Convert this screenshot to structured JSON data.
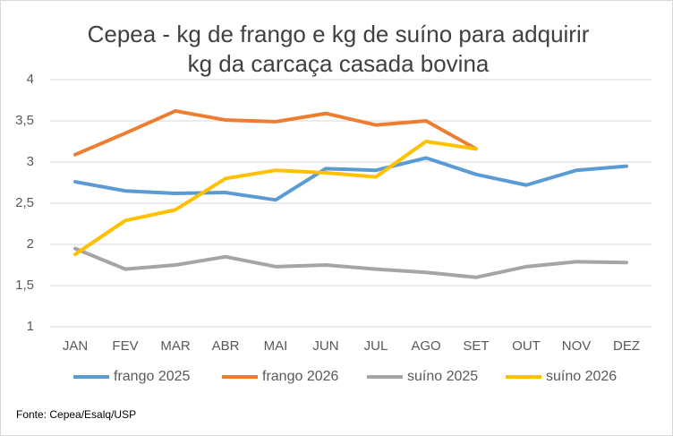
{
  "chart_data": {
    "type": "line",
    "title": [
      "Cepea - kg de frango e kg de suíno para adquirir",
      "kg da carcaça casada bovina"
    ],
    "categories": [
      "JAN",
      "FEV",
      "MAR",
      "ABR",
      "MAI",
      "JUN",
      "JUL",
      "AGO",
      "SET",
      "OUT",
      "NOV",
      "DEZ"
    ],
    "series": [
      {
        "name": "frango 2025",
        "color": "#5b9bd5",
        "values": [
          2.76,
          2.65,
          2.62,
          2.63,
          2.54,
          2.92,
          2.9,
          3.05,
          2.85,
          2.72,
          2.9,
          2.95
        ]
      },
      {
        "name": "frango 2026",
        "color": "#ed7d31",
        "values": [
          3.09,
          3.35,
          3.62,
          3.51,
          3.49,
          3.59,
          3.45,
          3.5,
          3.16,
          null,
          null,
          null
        ]
      },
      {
        "name": "suíno 2025",
        "color": "#a5a5a5",
        "values": [
          1.95,
          1.7,
          1.75,
          1.85,
          1.73,
          1.75,
          1.7,
          1.66,
          1.6,
          1.73,
          1.79,
          1.78
        ]
      },
      {
        "name": "suíno 2026",
        "color": "#ffc000",
        "values": [
          1.88,
          2.29,
          2.42,
          2.8,
          2.9,
          2.87,
          2.82,
          3.25,
          3.16,
          null,
          null,
          null
        ]
      }
    ],
    "ylim": [
      1,
      4
    ],
    "yticks": [
      1,
      {
        "value": 1.5,
        "label": "1,5"
      },
      2,
      {
        "value": 2.5,
        "label": "2,5"
      },
      3,
      {
        "value": 3.5,
        "label": "3,5"
      },
      4
    ],
    "grid": true,
    "legend": "bottom"
  },
  "source": "Fonte: Cepea/Esalq/USP"
}
